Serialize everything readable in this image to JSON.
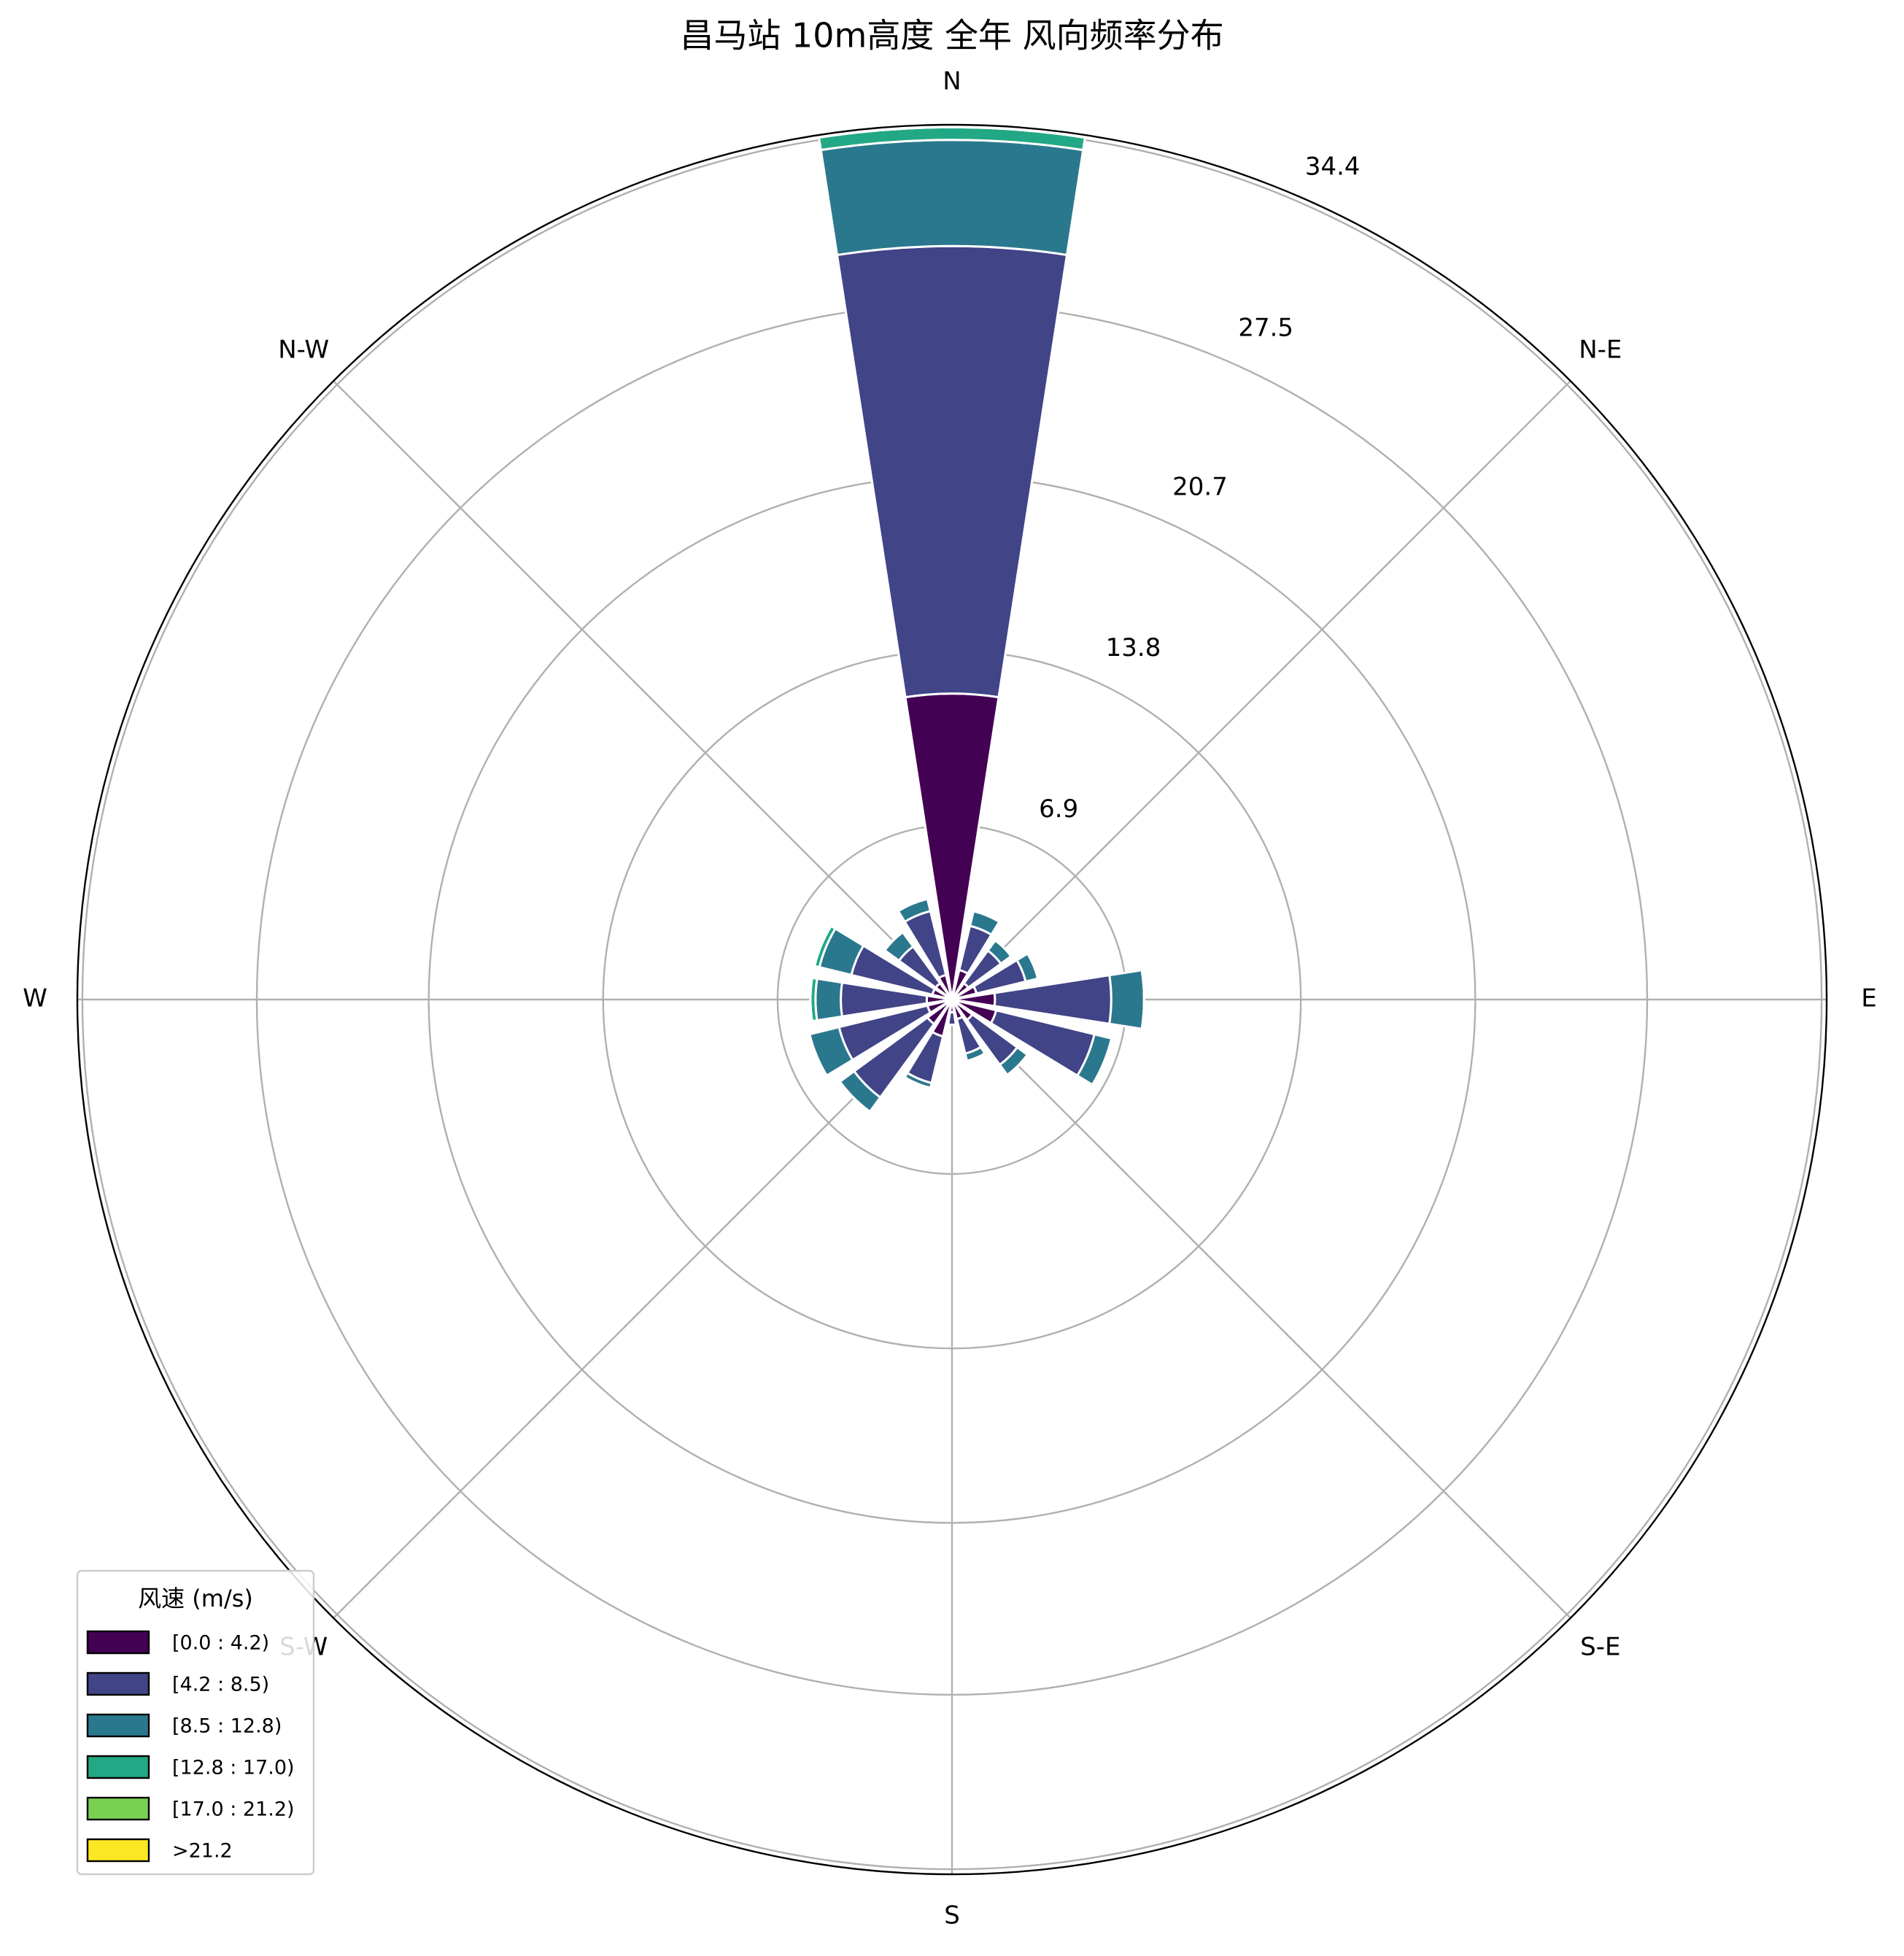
{
  "chart_data": {
    "type": "windrose",
    "title": "昌马站 10m高度 全年 风向频率分布",
    "categories": [
      "N",
      null,
      "N-E",
      null,
      "E",
      null,
      "S-E",
      null,
      "S",
      null,
      "S-W",
      null,
      "W",
      null,
      "N-W",
      null
    ],
    "series": [
      {
        "name": "[0.0 : 4.2)",
        "color": "#440154",
        "values": [
          12.1,
          1.2,
          0.8,
          1.0,
          1.7,
          1.8,
          1.0,
          0.8,
          0.5,
          1.5,
          1.2,
          1.0,
          1.0,
          0.8,
          0.8,
          1.0
        ]
      },
      {
        "name": "[4.2 : 8.5)",
        "color": "#414487",
        "values": [
          17.7,
          1.8,
          1.6,
          2.0,
          4.6,
          4.0,
          2.2,
          1.4,
          0.5,
          1.9,
          3.6,
          3.6,
          3.4,
          3.3,
          1.8,
          2.6
        ]
      },
      {
        "name": "[8.5 : 12.8)",
        "color": "#2a788e",
        "values": [
          4.2,
          0.6,
          0.5,
          0.5,
          1.3,
          0.7,
          0.5,
          0.3,
          0,
          0.2,
          0.7,
          1.2,
          1.0,
          1.3,
          0.7,
          0.5
        ]
      },
      {
        "name": "[12.8 : 17.0)",
        "color": "#22a884",
        "values": [
          0.5,
          0,
          0,
          0,
          0,
          0,
          0,
          0,
          0,
          0,
          0,
          0,
          0.2,
          0.2,
          0,
          0
        ]
      },
      {
        "name": "[17.0 : 21.2)",
        "color": "#7ad151",
        "values": [
          0,
          0,
          0,
          0,
          0,
          0,
          0,
          0,
          0,
          0,
          0,
          0,
          0,
          0,
          0,
          0
        ]
      },
      {
        "name": ">21.2",
        "color": "#fde725",
        "values": [
          0,
          0,
          0,
          0,
          0,
          0,
          0,
          0,
          0,
          0,
          0,
          0,
          0,
          0,
          0,
          0
        ]
      }
    ],
    "ylim": [
      0,
      34.6
    ],
    "yticks": [
      6.9,
      13.8,
      20.7,
      27.5,
      34.4
    ],
    "grid": true,
    "legend_title": "风速 (m/s)",
    "legend": "lower left"
  }
}
